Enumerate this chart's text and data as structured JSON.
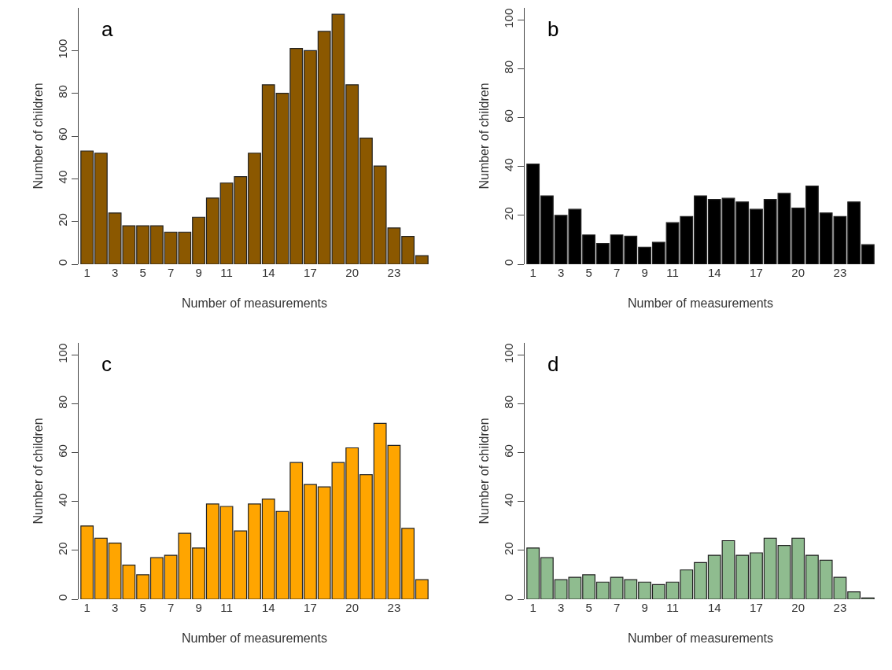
{
  "chart_data": [
    {
      "type": "bar",
      "title": "a",
      "xlabel": "Number of measurements",
      "ylabel": "Number of children",
      "categories": [
        "1",
        null,
        "3",
        null,
        "5",
        null,
        "7",
        null,
        "9",
        null,
        "11",
        null,
        null,
        "14",
        null,
        null,
        "17",
        null,
        null,
        "20",
        null,
        null,
        "23",
        null,
        null
      ],
      "values": [
        53,
        52,
        24,
        18,
        18,
        18,
        15,
        15,
        22,
        31,
        38,
        41,
        52,
        84,
        80,
        101,
        100,
        109,
        117,
        84,
        59,
        46,
        17,
        13,
        4
      ],
      "color": "#8b5800",
      "ylim": [
        0,
        120
      ],
      "yticks": [
        0,
        20,
        40,
        60,
        80,
        100
      ],
      "grid": false
    },
    {
      "type": "bar",
      "title": "b",
      "xlabel": "Number of measurements",
      "ylabel": "Number of children",
      "categories": [
        "1",
        null,
        "3",
        null,
        "5",
        null,
        "7",
        null,
        "9",
        null,
        "11",
        null,
        null,
        "14",
        null,
        null,
        "17",
        null,
        null,
        "20",
        null,
        null,
        "23",
        null,
        null
      ],
      "values": [
        41,
        28,
        20,
        22.5,
        12,
        8.5,
        12,
        11.5,
        7,
        9,
        17,
        19.5,
        28,
        26.5,
        27,
        25.5,
        22.5,
        26.5,
        29,
        23,
        32,
        21,
        19.5,
        25.5,
        8
      ],
      "color": "#000000",
      "ylim": [
        0,
        105
      ],
      "yticks": [
        0,
        20,
        40,
        60,
        80,
        100
      ],
      "grid": false
    },
    {
      "type": "bar",
      "title": "c",
      "xlabel": "Number of measurements",
      "ylabel": "Number of children",
      "categories": [
        "1",
        null,
        "3",
        null,
        "5",
        null,
        "7",
        null,
        "9",
        null,
        "11",
        null,
        null,
        "14",
        null,
        null,
        "17",
        null,
        null,
        "20",
        null,
        null,
        "23",
        null,
        null
      ],
      "values": [
        30,
        25,
        23,
        14,
        10,
        17,
        18,
        27,
        21,
        39,
        38,
        28,
        39,
        41,
        36,
        56,
        47,
        46,
        56,
        62,
        51,
        72,
        63,
        29,
        8
      ],
      "color": "#ffa500",
      "ylim": [
        0,
        105
      ],
      "yticks": [
        0,
        20,
        40,
        60,
        80,
        100
      ],
      "grid": false
    },
    {
      "type": "bar",
      "title": "d",
      "xlabel": "Number of measurements",
      "ylabel": "Number of children",
      "categories": [
        "1",
        null,
        "3",
        null,
        "5",
        null,
        "7",
        null,
        "9",
        null,
        "11",
        null,
        null,
        "14",
        null,
        null,
        "17",
        null,
        null,
        "20",
        null,
        null,
        "23",
        null,
        null
      ],
      "values": [
        21,
        17,
        8,
        9,
        10,
        7,
        9,
        8,
        7,
        6,
        7,
        12,
        15,
        18,
        24,
        18,
        19,
        25,
        22,
        25,
        18,
        16,
        9,
        3,
        0.5
      ],
      "color": "#8fbc8f",
      "ylim": [
        0,
        105
      ],
      "yticks": [
        0,
        20,
        40,
        60,
        80,
        100
      ],
      "grid": false
    }
  ]
}
